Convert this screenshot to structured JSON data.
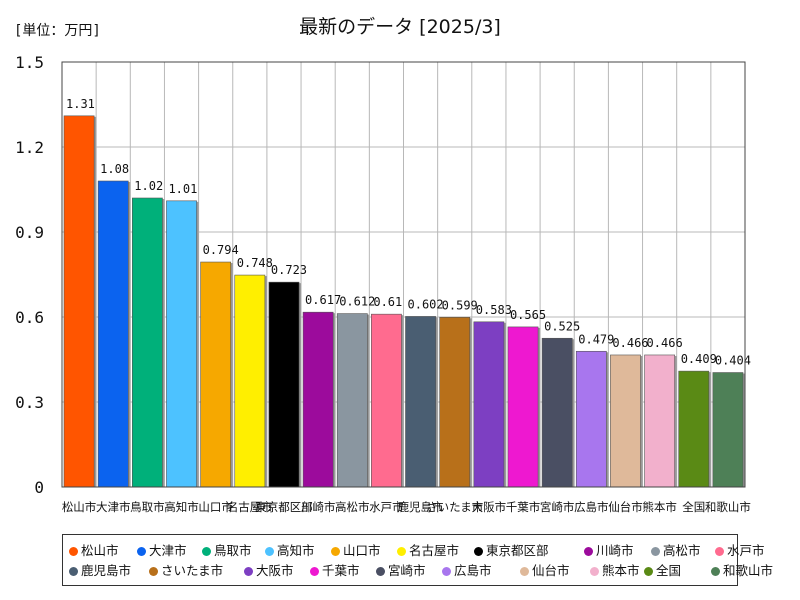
{
  "header": {
    "unit_label": "[単位：万円]",
    "title": "最新のデータ [2025/3]"
  },
  "chart_data": {
    "type": "bar",
    "title": "最新のデータ [2025/3]",
    "ylabel": "[単位：万円]",
    "ylim": [
      0,
      1.5
    ],
    "yticks": [
      "0",
      "0.3",
      "0.6",
      "0.9",
      "1.2",
      "1.5"
    ],
    "ytick_values": [
      0,
      0.3,
      0.6,
      0.9,
      1.2,
      1.5
    ],
    "grid": true,
    "legend_position": "bottom",
    "categories": [
      "松山市",
      "大津市",
      "鳥取市",
      "高知市",
      "山口市",
      "名古屋市",
      "東京都区部",
      "川崎市",
      "高松市",
      "水戸市",
      "鹿児島市",
      "さいたま市",
      "大阪市",
      "千葉市",
      "宮崎市",
      "広島市",
      "仙台市",
      "熊本市",
      "全国",
      "和歌山市"
    ],
    "values": [
      1.31,
      1.08,
      1.02,
      1.01,
      0.794,
      0.748,
      0.723,
      0.617,
      0.612,
      0.61,
      0.602,
      0.599,
      0.583,
      0.565,
      0.525,
      0.479,
      0.466,
      0.466,
      0.409,
      0.404
    ],
    "value_labels": [
      "1.31",
      "1.08",
      "1.02",
      "1.01",
      "0.794",
      "0.748",
      "0.723",
      "0.617",
      "0.612",
      "0.61",
      "0.602",
      "0.599",
      "0.583",
      "0.565",
      "0.525",
      "0.479",
      "0.466",
      "0.466",
      "0.409",
      "0.404"
    ],
    "colors": [
      "#ff5500",
      "#0b63ef",
      "#00b07a",
      "#4dc2ff",
      "#f6a800",
      "#ffef00",
      "#000000",
      "#9c0b9c",
      "#8a96a0",
      "#ff6b8f",
      "#4a5e72",
      "#b8701a",
      "#7d3fc2",
      "#ee18d0",
      "#4a4f63",
      "#a876ee",
      "#dfb99a",
      "#f2b0cc",
      "#5a8a15",
      "#4e8057"
    ]
  }
}
